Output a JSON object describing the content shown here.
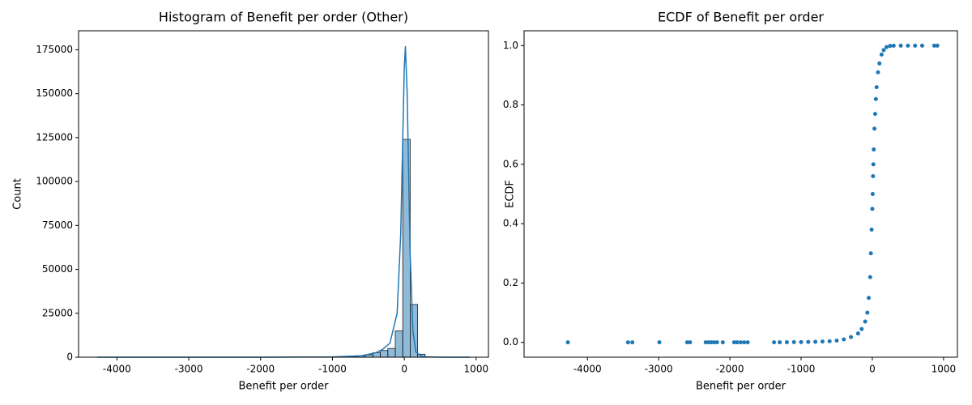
{
  "chart_data": [
    {
      "type": "histogram",
      "title": "Histogram of Benefit per order (Other)",
      "x_label": "Benefit per order",
      "y_label": "Count",
      "bins": [
        -4275.0,
        -4171.3,
        -4067.5,
        -3963.8,
        -3860.0,
        -3756.3,
        -3652.6,
        -3548.8,
        -3445.1,
        -3341.4,
        -3237.6,
        -3133.9,
        -3030.1,
        -2926.4,
        -2822.7,
        -2718.9,
        -2615.2,
        -2511.4,
        -2407.7,
        -2304.0,
        -2200.2,
        -2096.5,
        -1992.8,
        -1889.0,
        -1785.3,
        -1681.5,
        -1577.8,
        -1474.1,
        -1370.3,
        -1266.6,
        -1162.9,
        -1059.1,
        -955.4,
        -851.6,
        -747.9,
        -644.2,
        -540.4,
        -436.7,
        -333.0,
        -229.2,
        -125.5,
        -21.8,
        82.0,
        185.7,
        289.5,
        393.2,
        496.9,
        600.7,
        704.4,
        808.1,
        911.8
      ],
      "counts": [
        1,
        0,
        0,
        0,
        0,
        0,
        0,
        0,
        2,
        0,
        0,
        0,
        1,
        0,
        0,
        0,
        2,
        0,
        0,
        5,
        0,
        3,
        4,
        0,
        2,
        0,
        0,
        0,
        10,
        20,
        35,
        60,
        120,
        250,
        450,
        800,
        1400,
        2600,
        3800,
        5000,
        15000,
        124000,
        30000,
        1700,
        150,
        40,
        20,
        10,
        5,
        3
      ],
      "color": "#1f77b4",
      "kde": {
        "x": [
          -4275,
          -3000,
          -2000,
          -1000,
          -600,
          -400,
          -300,
          -200,
          -100,
          -50,
          0,
          15,
          40,
          80,
          120,
          160,
          250,
          500,
          912
        ],
        "values": [
          0,
          0,
          0,
          200,
          800,
          2500,
          4500,
          8000,
          25000,
          70000,
          165000,
          177000,
          150000,
          60000,
          15000,
          3000,
          300,
          0,
          0
        ]
      },
      "xlim": [
        -4534,
        1171
      ],
      "ylim": [
        0,
        185800
      ],
      "xticks": [
        -4000,
        -3000,
        -2000,
        -1000,
        0,
        1000
      ],
      "yticks": [
        0,
        25000,
        50000,
        75000,
        100000,
        125000,
        150000,
        175000
      ]
    },
    {
      "type": "scatter",
      "title": "ECDF of Benefit per order",
      "x_label": "Benefit per order",
      "y_label": "ECDF",
      "x": [
        -4275,
        -3430,
        -3370,
        -2990,
        -2600,
        -2560,
        -2340,
        -2300,
        -2260,
        -2220,
        -2180,
        -2100,
        -1940,
        -1900,
        -1850,
        -1800,
        -1750,
        -1380,
        -1300,
        -1200,
        -1100,
        -1000,
        -900,
        -800,
        -700,
        -600,
        -500,
        -400,
        -300,
        -200,
        -150,
        -100,
        -70,
        -50,
        -30,
        -20,
        -10,
        0,
        5,
        10,
        15,
        20,
        30,
        40,
        50,
        60,
        80,
        100,
        130,
        160,
        200,
        250,
        300,
        400,
        500,
        600,
        700,
        870,
        912
      ],
      "values": [
        1e-05,
        2e-05,
        3e-05,
        4e-05,
        5e-05,
        6e-05,
        7e-05,
        8e-05,
        9e-05,
        0.0001,
        0.00011,
        0.00012,
        0.00013,
        0.00014,
        0.00015,
        0.00016,
        0.00017,
        0.0002,
        0.0003,
        0.0005,
        0.0008,
        0.001,
        0.0015,
        0.002,
        0.003,
        0.004,
        0.006,
        0.01,
        0.018,
        0.03,
        0.045,
        0.07,
        0.1,
        0.15,
        0.22,
        0.3,
        0.38,
        0.45,
        0.5,
        0.56,
        0.6,
        0.65,
        0.72,
        0.77,
        0.82,
        0.86,
        0.91,
        0.94,
        0.97,
        0.985,
        0.995,
        0.999,
        0.9995,
        0.9998,
        0.9999,
        0.99995,
        0.99998,
        0.99999,
        1.0
      ],
      "color": "#1f77b4",
      "xlim": [
        -4890,
        1195
      ],
      "ylim": [
        -0.05,
        1.05
      ],
      "xticks": [
        -4000,
        -3000,
        -2000,
        -1000,
        0,
        1000
      ],
      "yticks": [
        {
          "value": 0,
          "label": "0.0"
        },
        0.2,
        0.4,
        0.6,
        0.8,
        {
          "value": 1,
          "label": "1.0"
        }
      ]
    }
  ]
}
